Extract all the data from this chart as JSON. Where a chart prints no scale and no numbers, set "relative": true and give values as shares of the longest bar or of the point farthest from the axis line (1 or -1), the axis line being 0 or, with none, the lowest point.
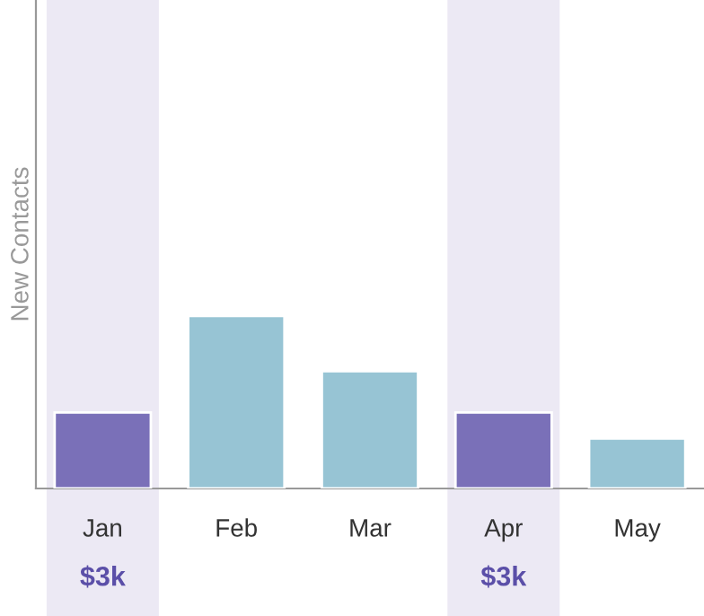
{
  "chart_data": {
    "type": "bar",
    "relative": true,
    "ylabel": "New Contacts",
    "categories": [
      "Jan",
      "Feb",
      "Mar",
      "Apr",
      "May"
    ],
    "values": [
      0.44,
      1,
      0.68,
      0.44,
      0.29
    ],
    "colors": [
      "#7a70b8",
      "#97c4d4",
      "#97c4d4",
      "#7a70b8",
      "#97c4d4"
    ],
    "bands": [
      {
        "axis": "x",
        "from": "Jan",
        "to": "Jan",
        "color": "#ece9f4"
      },
      {
        "axis": "x",
        "from": "Apr",
        "to": "Apr",
        "color": "#ece9f4"
      }
    ],
    "annotations": [
      "$3k",
      "$3k"
    ],
    "grid": false,
    "legend": false
  }
}
